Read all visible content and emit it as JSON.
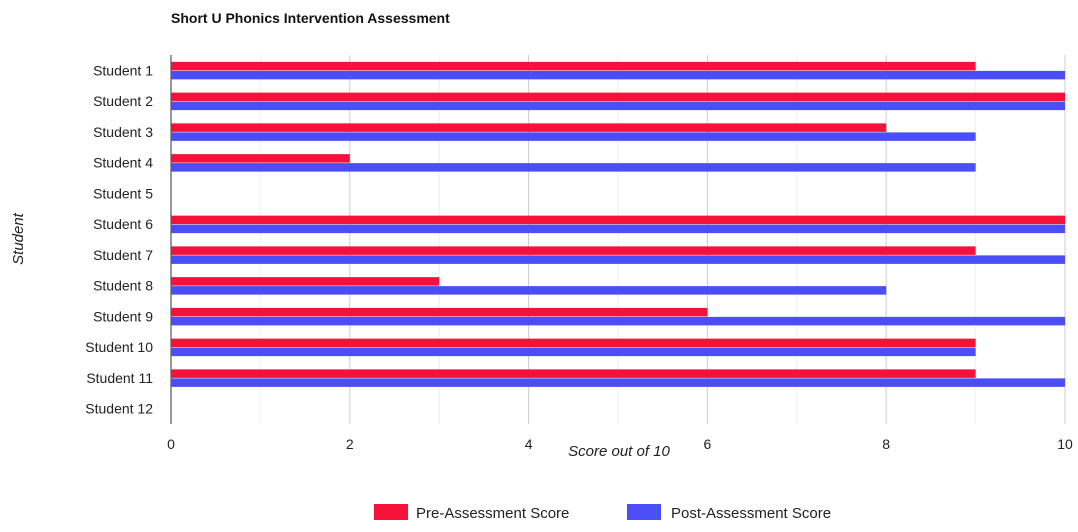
{
  "chart_data": {
    "type": "bar",
    "orientation": "horizontal",
    "title": "Short U Phonics Intervention Assessment",
    "xlabel": "Score out of 10",
    "ylabel": "Student",
    "xlim": [
      0,
      10
    ],
    "x_ticks": [
      0,
      2,
      4,
      6,
      8,
      10
    ],
    "grid": true,
    "legend_position": "bottom",
    "categories": [
      "Student 1",
      "Student 2",
      "Student 3",
      "Student 4",
      "Student 5",
      "Student 6",
      "Student 7",
      "Student 8",
      "Student 9",
      "Student 10",
      "Student 11",
      "Student 12"
    ],
    "series": [
      {
        "name": "Pre-Assessment Score",
        "color": "#f4123a",
        "values": [
          9,
          10,
          8,
          2,
          0,
          10,
          9,
          3,
          6,
          9,
          9,
          0
        ]
      },
      {
        "name": "Post-Assessment Score",
        "color": "#4b4df5",
        "values": [
          10,
          10,
          9,
          9,
          0,
          10,
          10,
          8,
          10,
          9,
          10,
          0
        ]
      }
    ]
  }
}
